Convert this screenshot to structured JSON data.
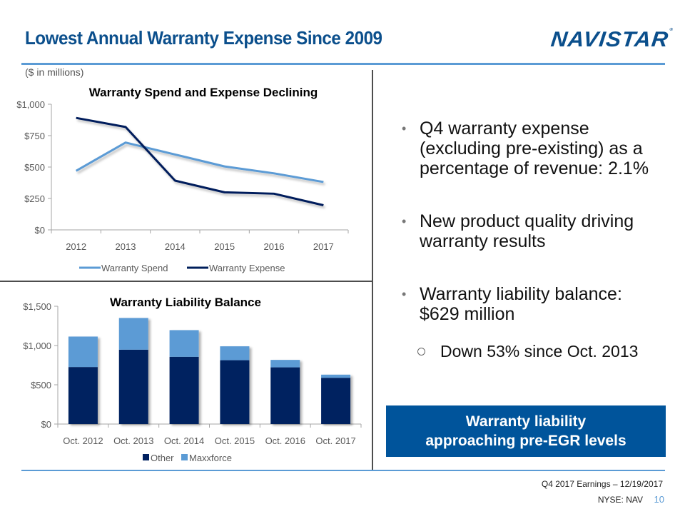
{
  "header": {
    "title": "Lowest Annual Warranty Expense Since 2009",
    "logo_text": "NAVISTAR",
    "logo_mark": "®",
    "units_note": "($ in millions)"
  },
  "colors": {
    "brand_blue": "#0b4f8c",
    "rule_blue": "#5b9bd5",
    "spend_line": "#5b9bd5",
    "expense_line": "#001f5b",
    "other_bar": "#002060",
    "maxxforce_bar": "#5b9bd5",
    "callout_bg": "#00549b"
  },
  "chart_data": [
    {
      "type": "line",
      "title": "Warranty Spend and Expense Declining",
      "xlabel": "",
      "ylabel": "",
      "categories": [
        "2012",
        "2013",
        "2014",
        "2015",
        "2016",
        "2017"
      ],
      "y_ticks": [
        "$0",
        "$250",
        "$500",
        "$750",
        "$1,000"
      ],
      "y_tick_values": [
        0,
        250,
        500,
        750,
        1000
      ],
      "ylim": [
        0,
        1000
      ],
      "grid": false,
      "legend_position": "bottom",
      "series": [
        {
          "name": "Warranty Spend",
          "color": "#5b9bd5",
          "values": [
            470,
            695,
            600,
            505,
            450,
            381
          ]
        },
        {
          "name": "Warranty Expense",
          "color": "#001f5b",
          "values": [
            891,
            819,
            392,
            299,
            288,
            196
          ]
        }
      ]
    },
    {
      "type": "bar",
      "stacked": true,
      "title": "Warranty Liability Balance",
      "xlabel": "",
      "ylabel": "",
      "categories": [
        "Oct. 2012",
        "Oct. 2013",
        "Oct. 2014",
        "Oct. 2015",
        "Oct. 2016",
        "Oct. 2017"
      ],
      "y_ticks": [
        "$0",
        "$500",
        "$1,000",
        "$1,500"
      ],
      "y_tick_values": [
        0,
        500,
        1000,
        1500
      ],
      "ylim": [
        0,
        1500
      ],
      "grid": false,
      "legend_position": "bottom",
      "series": [
        {
          "name": "Other",
          "color": "#002060",
          "values": [
            726,
            947,
            856,
            813,
            722,
            589
          ]
        },
        {
          "name": "Maxxforce",
          "color": "#5b9bd5",
          "values": [
            388,
            404,
            340,
            177,
            95,
            40
          ]
        }
      ]
    }
  ],
  "bullets": [
    {
      "text": "Q4 warranty expense (excluding pre-existing) as a percentage of revenue: 2.1%"
    },
    {
      "text": "New product quality driving warranty results"
    },
    {
      "text": "Warranty liability balance: $629 million"
    }
  ],
  "sub_bullet": {
    "text": "Down 53% since Oct. 2013"
  },
  "callout": {
    "line1": "Warranty liability",
    "line2": "approaching pre-EGR levels"
  },
  "footer": {
    "event": "Q4 2017 Earnings – 12/19/2017",
    "ticker": "NYSE: NAV",
    "page_number": "10"
  }
}
